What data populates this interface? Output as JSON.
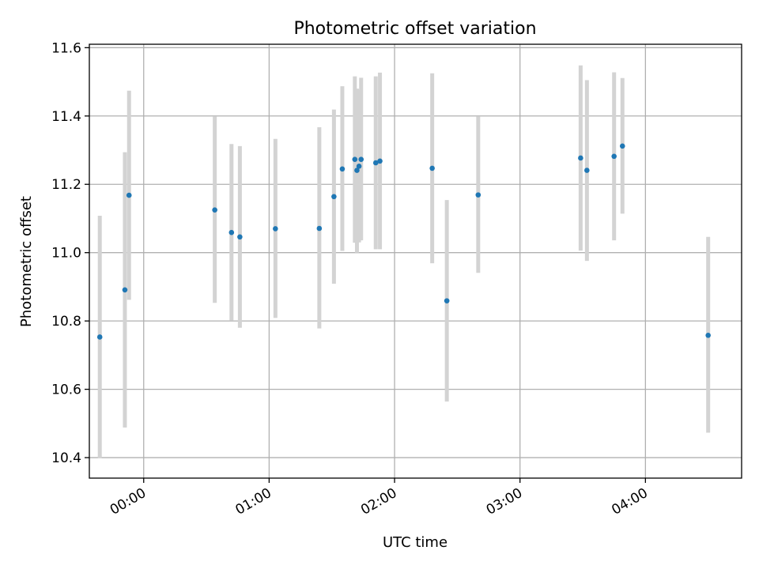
{
  "chart_data": {
    "type": "scatter",
    "title": "Photometric offset variation",
    "xlabel": "UTC time",
    "ylabel": "Photometric offset",
    "x_is_time": true,
    "xlim": [
      "-00:26",
      "04:46"
    ],
    "ylim": [
      10.34,
      11.61
    ],
    "x_ticks": [
      "00:00",
      "01:00",
      "02:00",
      "03:00",
      "04:00"
    ],
    "y_ticks": [
      10.4,
      10.6,
      10.8,
      11.0,
      11.2,
      11.4,
      11.6
    ],
    "grid": true,
    "points": [
      {
        "x": "-00:21",
        "y": 10.753,
        "low": 10.398,
        "high": 11.108
      },
      {
        "x": "-00:09",
        "y": 10.891,
        "low": 10.488,
        "high": 11.294
      },
      {
        "x": "-00:07",
        "y": 11.168,
        "low": 10.862,
        "high": 11.474
      },
      {
        "x": "00:34",
        "y": 11.125,
        "low": 10.853,
        "high": 11.398
      },
      {
        "x": "00:42",
        "y": 11.059,
        "low": 10.801,
        "high": 11.318
      },
      {
        "x": "00:46",
        "y": 11.046,
        "low": 10.78,
        "high": 11.312
      },
      {
        "x": "01:03",
        "y": 11.07,
        "low": 10.809,
        "high": 11.333
      },
      {
        "x": "01:24",
        "y": 11.071,
        "low": 10.778,
        "high": 11.367
      },
      {
        "x": "01:31",
        "y": 11.164,
        "low": 10.909,
        "high": 11.419
      },
      {
        "x": "01:35",
        "y": 11.245,
        "low": 11.005,
        "high": 11.487
      },
      {
        "x": "01:41",
        "y": 11.273,
        "low": 11.029,
        "high": 11.516
      },
      {
        "x": "01:42",
        "y": 11.241,
        "low": 11.0,
        "high": 11.48
      },
      {
        "x": "01:43",
        "y": 11.253,
        "low": 11.03,
        "high": 11.477
      },
      {
        "x": "01:44",
        "y": 11.273,
        "low": 11.036,
        "high": 11.512
      },
      {
        "x": "01:51",
        "y": 11.263,
        "low": 11.01,
        "high": 11.516
      },
      {
        "x": "01:53",
        "y": 11.268,
        "low": 11.01,
        "high": 11.527
      },
      {
        "x": "02:18",
        "y": 11.247,
        "low": 10.969,
        "high": 11.525
      },
      {
        "x": "02:25",
        "y": 10.859,
        "low": 10.564,
        "high": 11.154
      },
      {
        "x": "02:40",
        "y": 11.169,
        "low": 10.941,
        "high": 11.398
      },
      {
        "x": "03:29",
        "y": 11.277,
        "low": 11.006,
        "high": 11.548
      },
      {
        "x": "03:32",
        "y": 11.241,
        "low": 10.976,
        "high": 11.505
      },
      {
        "x": "03:45",
        "y": 11.282,
        "low": 11.036,
        "high": 11.528
      },
      {
        "x": "03:49",
        "y": 11.312,
        "low": 11.114,
        "high": 11.511
      },
      {
        "x": "04:30",
        "y": 10.758,
        "low": 10.473,
        "high": 11.046
      }
    ]
  }
}
